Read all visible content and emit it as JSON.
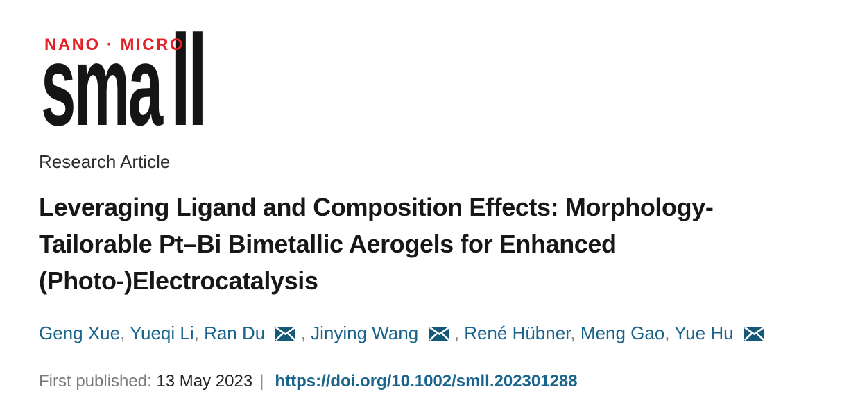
{
  "logo": {
    "tagline": "NANO · MICRO",
    "wordmark_sma": "sma",
    "wordmark_ll": "ll"
  },
  "article": {
    "type_label": "Research Article",
    "title_lines": [
      "Leveraging Ligand and Composition Effects: Morphology-",
      "Tailorable Pt–Bi Bimetallic Aerogels for Enhanced",
      "(Photo-)Electrocatalysis"
    ],
    "authors": [
      {
        "name": "Geng Xue",
        "has_email": false
      },
      {
        "name": "Yueqi Li",
        "has_email": false
      },
      {
        "name": "Ran Du",
        "has_email": true
      },
      {
        "name": "Jinying Wang",
        "has_email": true
      },
      {
        "name": "René Hübner",
        "has_email": false
      },
      {
        "name": "Meng Gao",
        "has_email": false
      },
      {
        "name": "Yue Hu",
        "has_email": true
      }
    ],
    "separator": ", ",
    "published": {
      "label": "First published:",
      "date": "13 May 2023",
      "divider": "|",
      "doi_url": "https://doi.org/10.1002/smll.202301288"
    }
  },
  "colors": {
    "brand_red": "#e32126",
    "link_teal": "#1a648c",
    "envelope_teal": "#155878",
    "text_dark": "#1b1b1b",
    "muted_gray": "#7a7a7a"
  }
}
